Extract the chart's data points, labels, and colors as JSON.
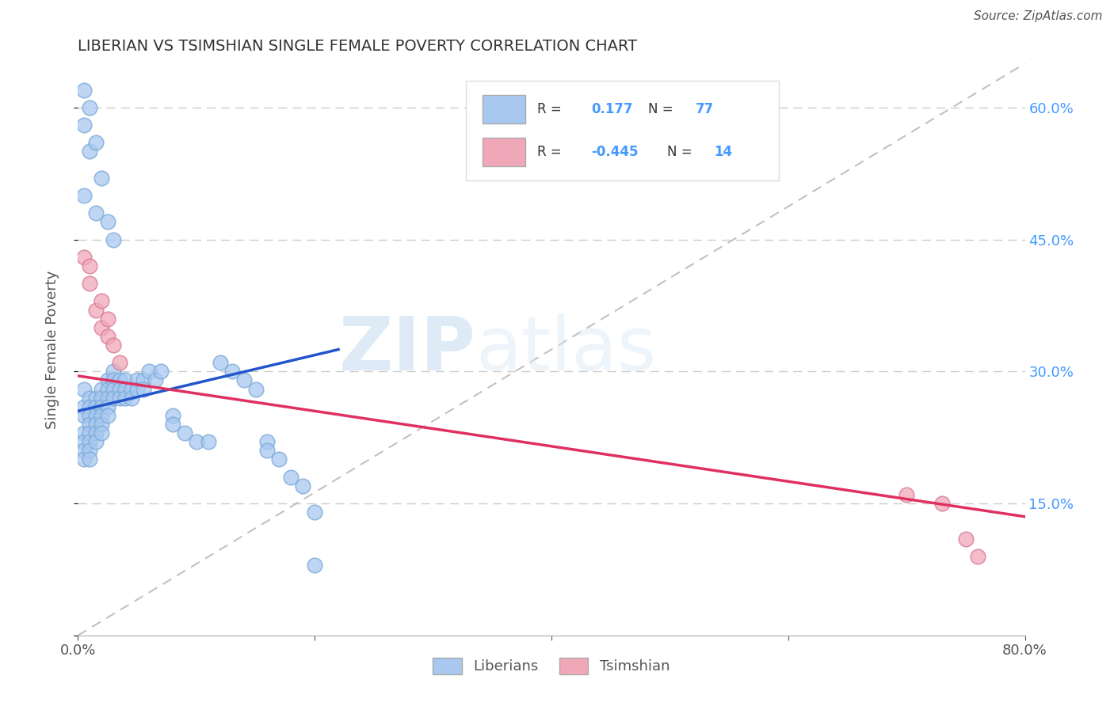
{
  "title": "LIBERIAN VS TSIMSHIAN SINGLE FEMALE POVERTY CORRELATION CHART",
  "source": "Source: ZipAtlas.com",
  "ylabel": "Single Female Poverty",
  "xlim": [
    0.0,
    0.8
  ],
  "ylim": [
    0.0,
    0.65
  ],
  "yticks": [
    0.0,
    0.15,
    0.3,
    0.45,
    0.6
  ],
  "xticks": [
    0.0,
    0.8
  ],
  "liberian_R": 0.177,
  "liberian_N": 77,
  "tsimshian_R": -0.445,
  "tsimshian_N": 14,
  "liberian_color": "#a8c8f0",
  "liberian_edge": "#7aaad8",
  "tsimshian_color": "#f0a8b8",
  "tsimshian_edge": "#d87898",
  "liberian_line_color": "#2255cc",
  "tsimshian_line_color": "#e03060",
  "diagonal_color": "#bbbbbb",
  "watermark_zip": "ZIP",
  "watermark_atlas": "atlas",
  "liberian_x": [
    0.005,
    0.005,
    0.005,
    0.005,
    0.005,
    0.005,
    0.005,
    0.01,
    0.01,
    0.01,
    0.01,
    0.01,
    0.01,
    0.01,
    0.01,
    0.015,
    0.015,
    0.015,
    0.015,
    0.015,
    0.015,
    0.02,
    0.02,
    0.02,
    0.02,
    0.02,
    0.02,
    0.025,
    0.025,
    0.025,
    0.025,
    0.025,
    0.03,
    0.03,
    0.03,
    0.03,
    0.035,
    0.035,
    0.035,
    0.04,
    0.04,
    0.04,
    0.045,
    0.045,
    0.05,
    0.05,
    0.055,
    0.055,
    0.06,
    0.065,
    0.07,
    0.08,
    0.08,
    0.09,
    0.1,
    0.11,
    0.12,
    0.13,
    0.14,
    0.15,
    0.16,
    0.16,
    0.17,
    0.18,
    0.19,
    0.2,
    0.2,
    0.005,
    0.01,
    0.015,
    0.02,
    0.025,
    0.03,
    0.005,
    0.005,
    0.01,
    0.015
  ],
  "liberian_y": [
    0.28,
    0.26,
    0.25,
    0.23,
    0.22,
    0.21,
    0.2,
    0.27,
    0.26,
    0.25,
    0.24,
    0.23,
    0.22,
    0.21,
    0.2,
    0.27,
    0.26,
    0.25,
    0.24,
    0.23,
    0.22,
    0.28,
    0.27,
    0.26,
    0.25,
    0.24,
    0.23,
    0.29,
    0.28,
    0.27,
    0.26,
    0.25,
    0.3,
    0.29,
    0.28,
    0.27,
    0.29,
    0.28,
    0.27,
    0.29,
    0.28,
    0.27,
    0.28,
    0.27,
    0.29,
    0.28,
    0.29,
    0.28,
    0.3,
    0.29,
    0.3,
    0.25,
    0.24,
    0.23,
    0.22,
    0.22,
    0.31,
    0.3,
    0.29,
    0.28,
    0.22,
    0.21,
    0.2,
    0.18,
    0.17,
    0.14,
    0.08,
    0.5,
    0.55,
    0.48,
    0.52,
    0.47,
    0.45,
    0.62,
    0.58,
    0.6,
    0.56
  ],
  "tsimshian_x": [
    0.005,
    0.01,
    0.015,
    0.02,
    0.025,
    0.03,
    0.035,
    0.01,
    0.02,
    0.025,
    0.7,
    0.73,
    0.75,
    0.76
  ],
  "tsimshian_y": [
    0.43,
    0.4,
    0.37,
    0.35,
    0.34,
    0.33,
    0.31,
    0.42,
    0.38,
    0.36,
    0.16,
    0.15,
    0.11,
    0.09
  ],
  "lib_line_x0": 0.0,
  "lib_line_x1": 0.22,
  "lib_line_y0": 0.255,
  "lib_line_y1": 0.325,
  "tsi_line_x0": 0.0,
  "tsi_line_x1": 0.8,
  "tsi_line_y0": 0.295,
  "tsi_line_y1": 0.135
}
